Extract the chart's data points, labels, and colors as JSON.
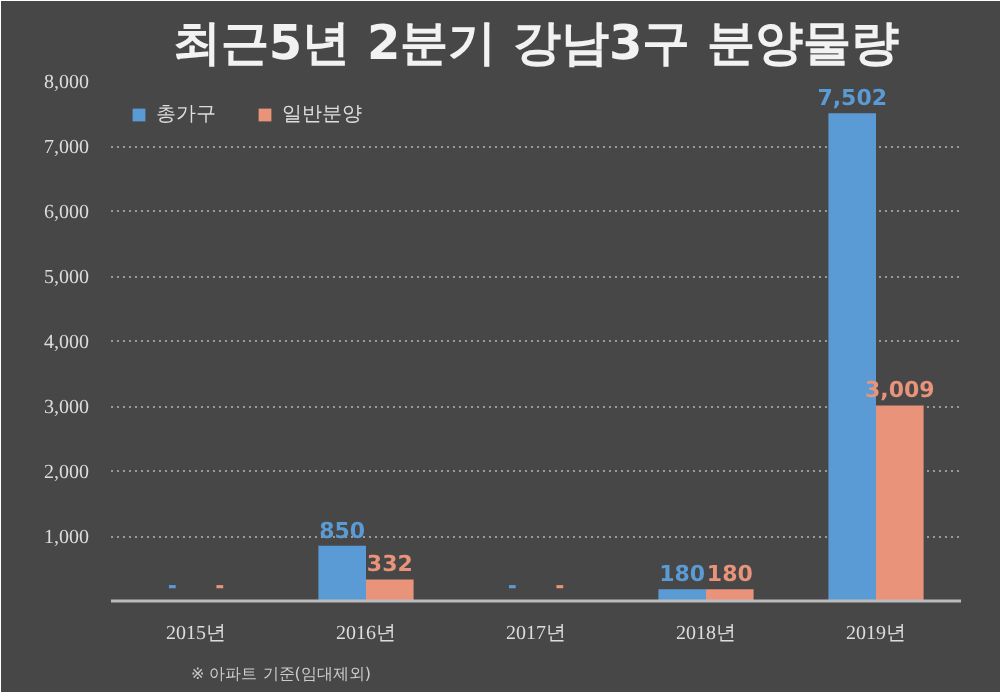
{
  "chart_data": {
    "type": "bar",
    "title": "최근5년 2분기 강남3구 분양물량",
    "categories": [
      "2015년",
      "2016년",
      "2017년",
      "2018년",
      "2019년"
    ],
    "series": [
      {
        "name": "총가구",
        "color": "#5b9bd5",
        "values": [
          null,
          850,
          null,
          180,
          7502
        ],
        "value_labels": [
          "-",
          "850",
          "-",
          "180",
          "7,502"
        ]
      },
      {
        "name": "일반분양",
        "color": "#e8937a",
        "values": [
          null,
          332,
          null,
          180,
          3009
        ],
        "value_labels": [
          "-",
          "332",
          "-",
          "180",
          "3,009"
        ]
      }
    ],
    "ylim": [
      0,
      8000
    ],
    "yticks": [
      {
        "value": 1000,
        "label": "1,000"
      },
      {
        "value": 2000,
        "label": "2,000"
      },
      {
        "value": 3000,
        "label": "3,000"
      },
      {
        "value": 4000,
        "label": "4,000"
      },
      {
        "value": 5000,
        "label": "5,000"
      },
      {
        "value": 6000,
        "label": "6,000"
      },
      {
        "value": 7000,
        "label": "7,000"
      },
      {
        "value": 8000,
        "label": "8,000"
      }
    ],
    "grid": "y",
    "legend": "top left",
    "annotations": [
      "※ 아파트 기준(임대제외)"
    ]
  }
}
